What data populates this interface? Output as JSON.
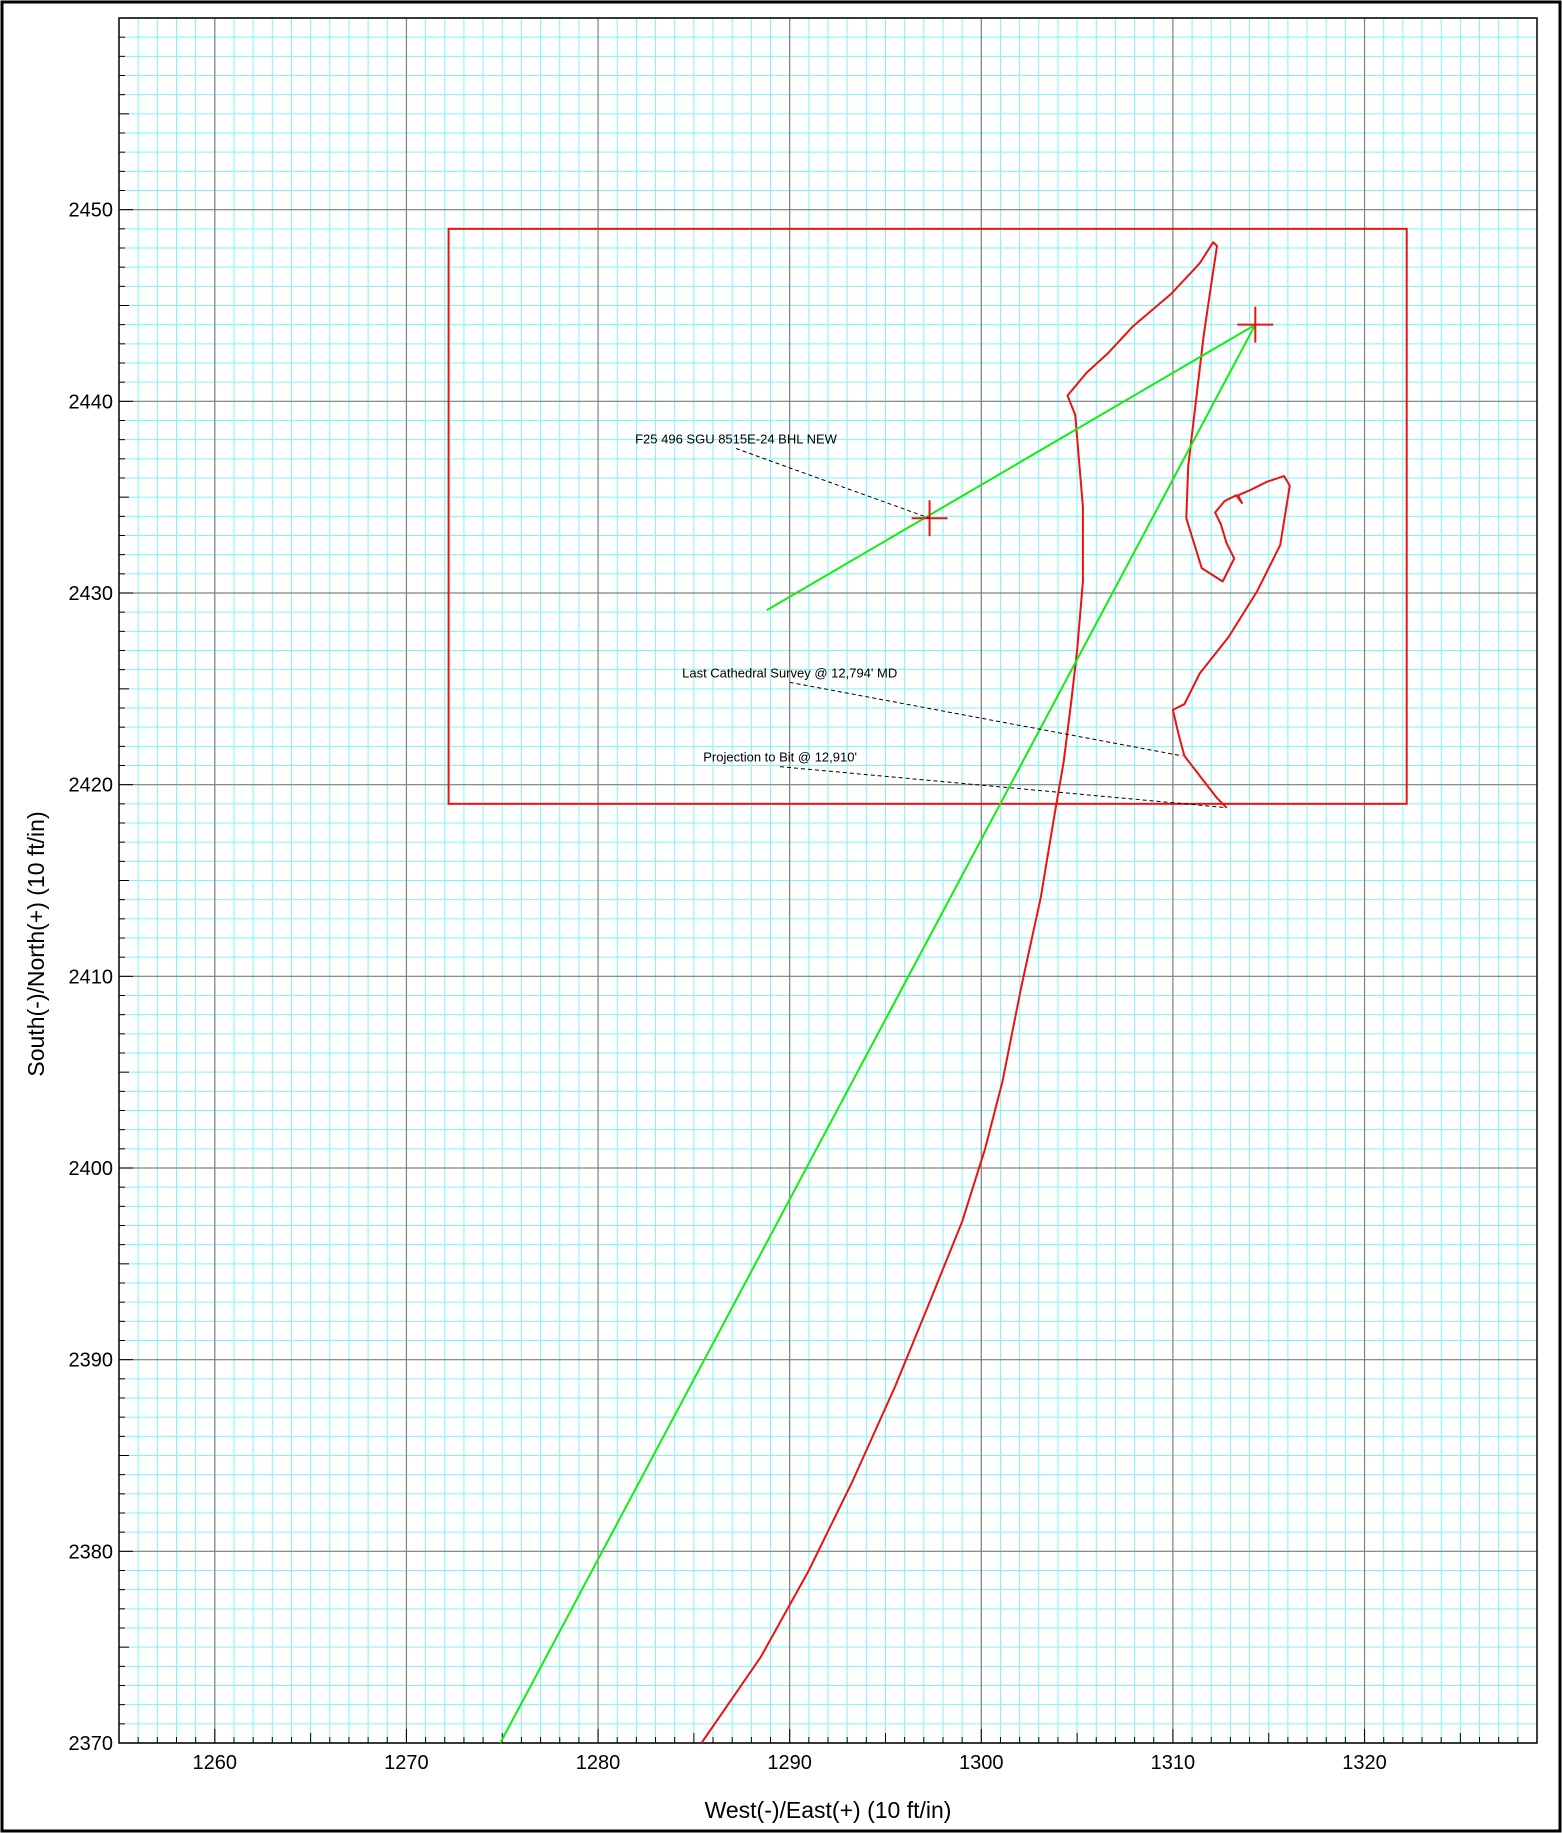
{
  "chart_data": {
    "type": "line",
    "title": "",
    "xlabel": "West(-)/East(+) (10 ft/in)",
    "ylabel": "South(-)/North(+) (10 ft/in)",
    "xlim": [
      1255,
      1329
    ],
    "ylim": [
      2370,
      2460
    ],
    "x_ticks": [
      1260,
      1270,
      1280,
      1290,
      1300,
      1310,
      1320
    ],
    "y_ticks": [
      2370,
      2380,
      2390,
      2400,
      2410,
      2420,
      2430,
      2440,
      2450
    ],
    "grid": true,
    "colors": {
      "minor_grid": "#7ff5f5",
      "major_grid": "#808080",
      "actual": "#ee1111",
      "plan": "#11ee11",
      "target": "#ee1111"
    },
    "series": [
      {
        "color": "#ee1111",
        "x": [
          1285.4,
          1288.5,
          1291.0,
          1293.3,
          1295.5,
          1297.3,
          1299.0,
          1300.2,
          1301.1,
          1302.1,
          1303.1,
          1303.8,
          1304.3,
          1304.7,
          1305.0,
          1305.3,
          1305.3,
          1304.9,
          1304.5,
          1305.5,
          1306.6,
          1307.9,
          1309.9,
          1311.4,
          1312.1,
          1312.3,
          1312.0,
          1311.6,
          1310.8,
          1310.7,
          1311.5,
          1312.6,
          1313.2,
          1312.8,
          1312.5,
          1312.2,
          1312.7,
          1313.3,
          1313.6,
          1313.4,
          1314.1,
          1314.9,
          1315.8,
          1316.1,
          1315.6,
          1314.4,
          1312.9,
          1311.4,
          1310.6,
          1310.0,
          1310.3,
          1310.6,
          1312.3,
          1312.8
        ],
        "y": [
          2370.0,
          2374.5,
          2379.0,
          2383.7,
          2388.6,
          2393.0,
          2397.2,
          2401.0,
          2404.5,
          2409.5,
          2414.1,
          2418.3,
          2421.2,
          2424.4,
          2427.0,
          2430.6,
          2434.5,
          2439.3,
          2440.3,
          2441.5,
          2442.5,
          2443.9,
          2445.6,
          2447.2,
          2448.3,
          2448.1,
          2446.1,
          2443.4,
          2436.6,
          2433.9,
          2431.3,
          2430.6,
          2431.8,
          2432.6,
          2433.6,
          2434.2,
          2434.8,
          2435.1,
          2434.7,
          2435.1,
          2435.4,
          2435.8,
          2436.1,
          2435.6,
          2432.5,
          2430.1,
          2427.7,
          2425.8,
          2424.2,
          2423.9,
          2422.6,
          2421.5,
          2419.3,
          2418.8
        ]
      },
      {
        "color": "#11ee11",
        "x": [
          1274.9,
          1314.3,
          1288.8
        ],
        "y": [
          2370.0,
          2444.0,
          2429.1
        ]
      }
    ],
    "target_box": {
      "x": [
        1272.2,
        1322.2
      ],
      "y": [
        2419.0,
        2449.0
      ]
    },
    "markers": [
      {
        "x": 1297.3,
        "y": 2433.9
      },
      {
        "x": 1314.3,
        "y": 2444.0
      }
    ],
    "annotations": [
      {
        "text": "F25 496 SGU 8515E-24 BHL NEW",
        "label_x": 1287.2,
        "label_y": 2437.8,
        "point_x": 1297.3,
        "point_y": 2433.9
      },
      {
        "text": "Last Cathedral Survey @ 12,794' MD",
        "label_x": 1290.0,
        "label_y": 2425.6,
        "point_x": 1310.5,
        "point_y": 2421.5
      },
      {
        "text": "Projection to Bit @ 12,910'",
        "label_x": 1289.5,
        "label_y": 2421.2,
        "point_x": 1312.8,
        "point_y": 2418.8
      }
    ]
  }
}
